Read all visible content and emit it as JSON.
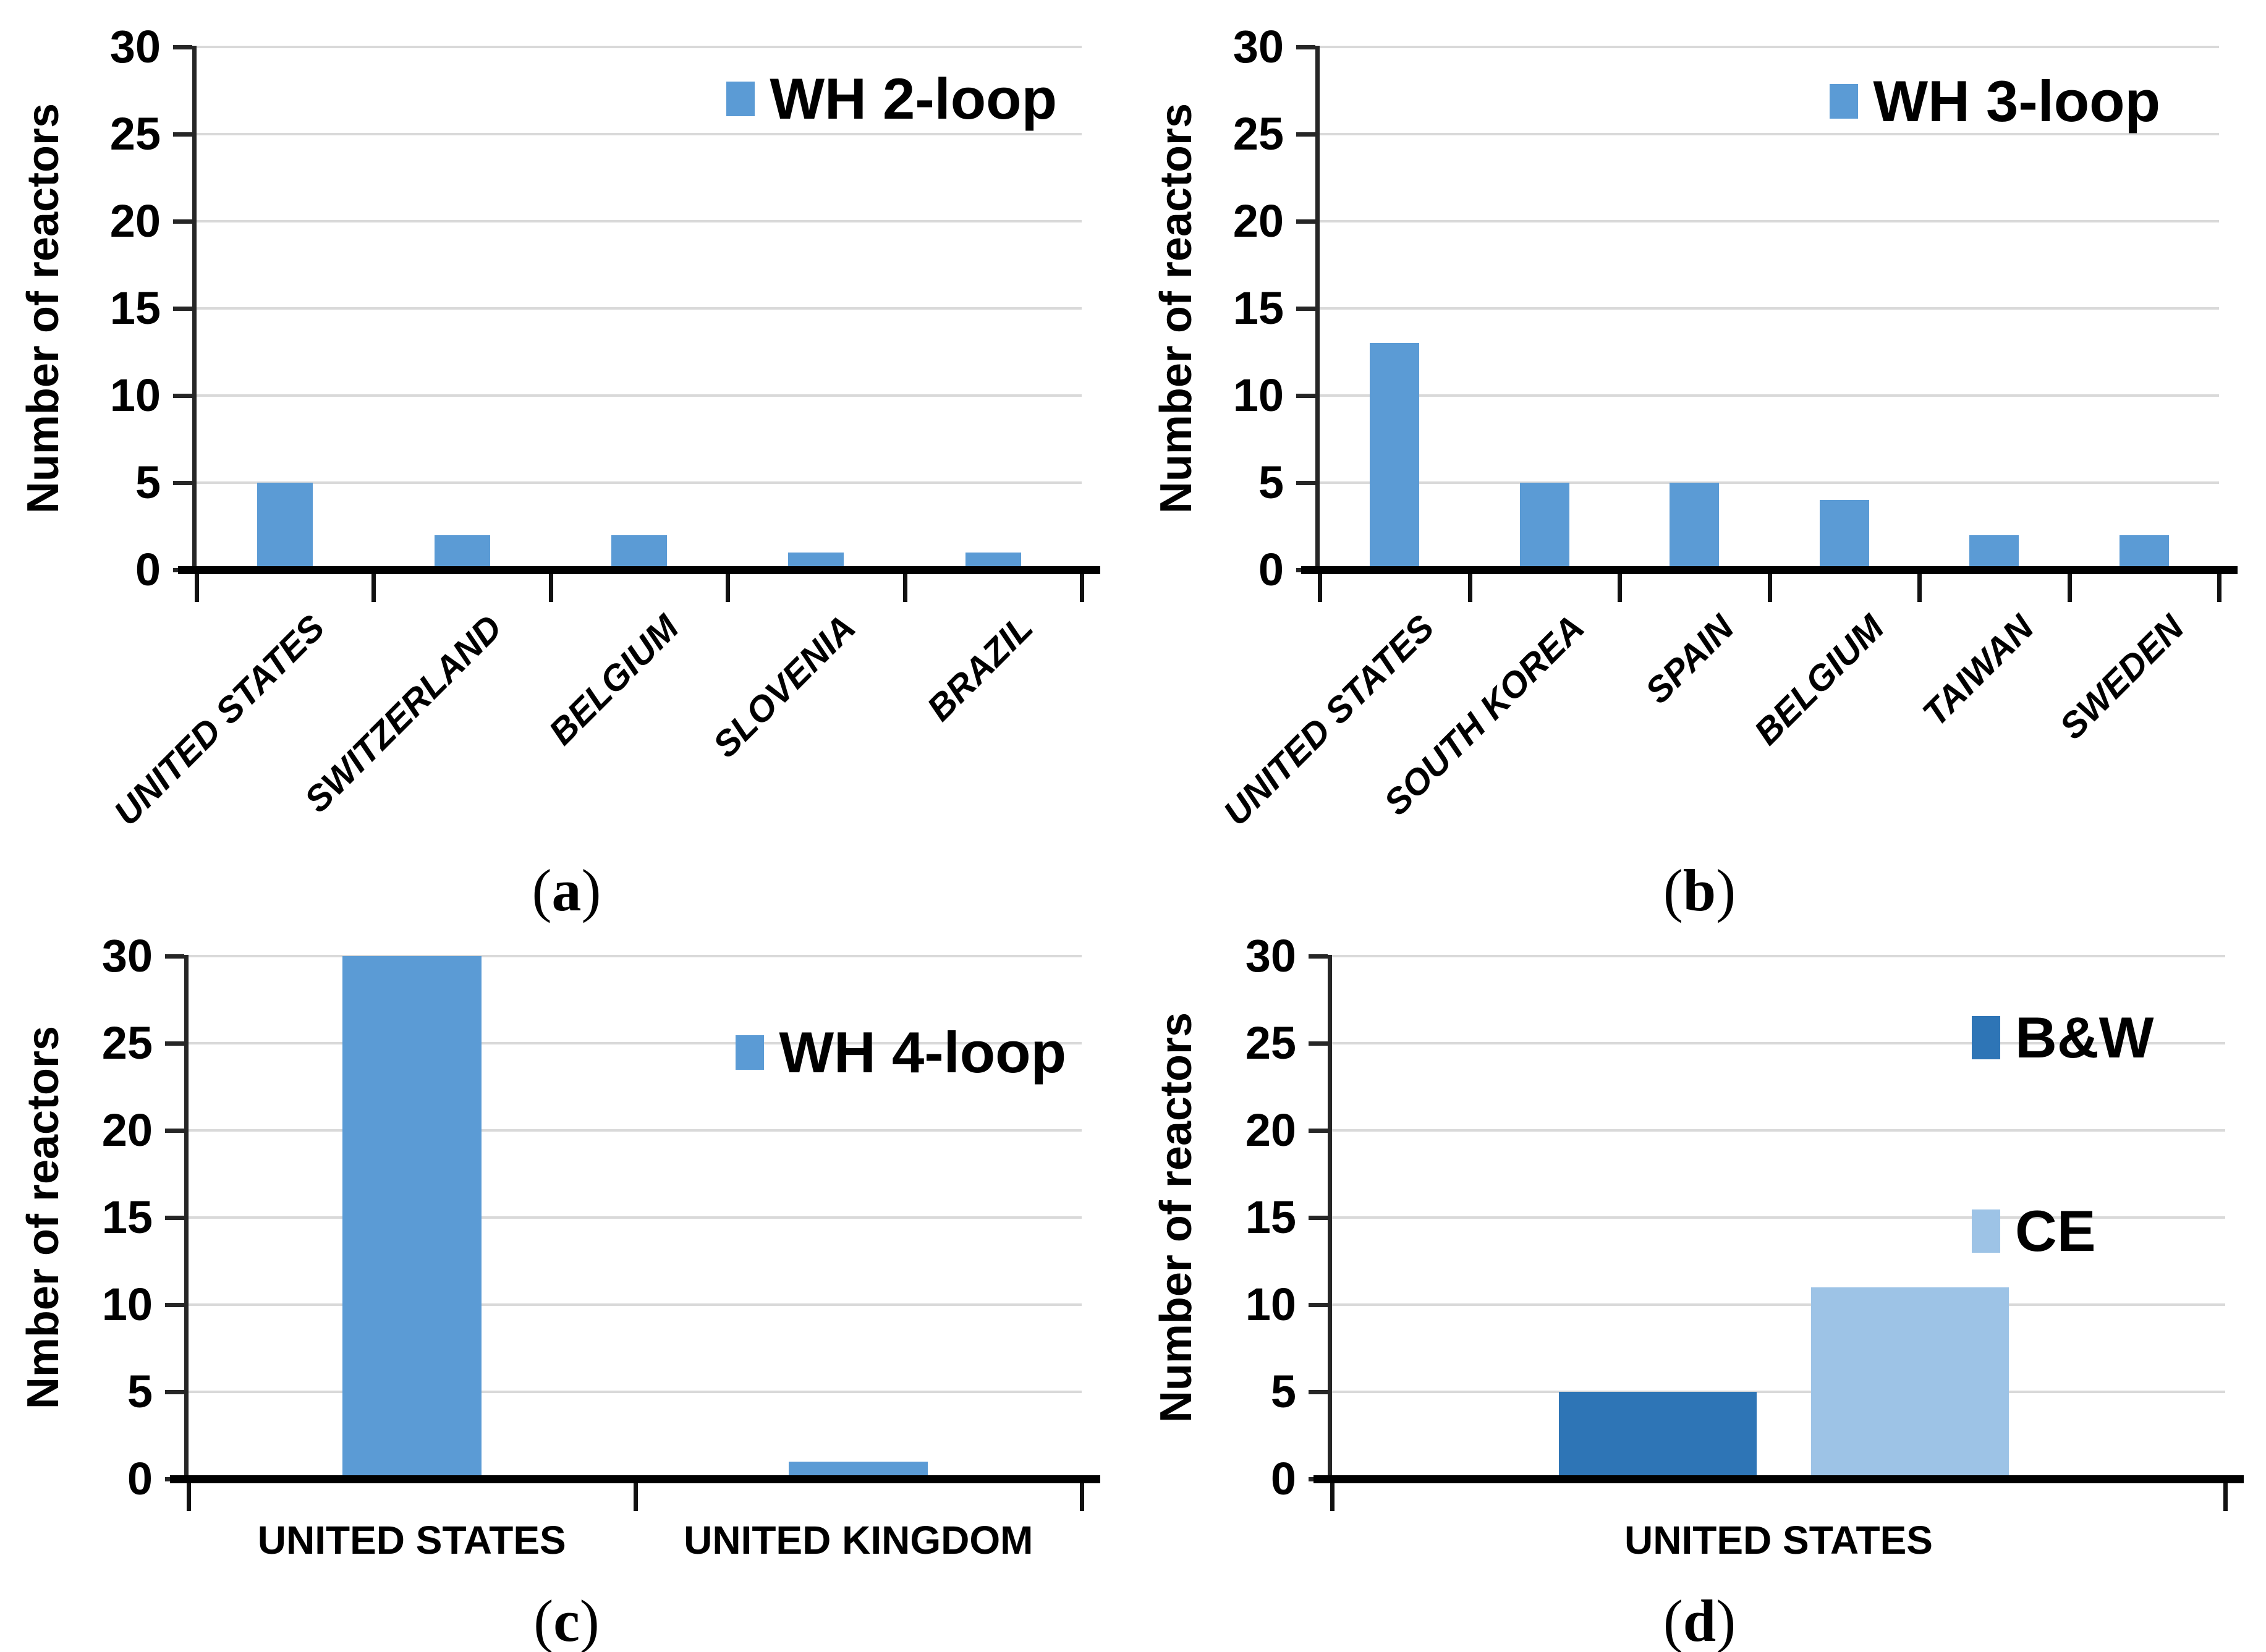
{
  "figure": {
    "background": "#ffffff",
    "description_visible_text_only": true
  },
  "colors": {
    "wh_bar_blue": "#5b9bd5",
    "bw_dark_blue": "#2e75b6",
    "ce_light_blue": "#9dc3e6",
    "gridline": "#d9d9d9",
    "axis": "#000000",
    "text": "#000000"
  },
  "chart_data": [
    {
      "panel": "a",
      "type": "bar",
      "ylabel": "Number of reactors",
      "ylim": [
        0,
        30
      ],
      "yticks": [
        0,
        5,
        10,
        15,
        20,
        25,
        30
      ],
      "grid": true,
      "legend_position": "top-right-inside",
      "categories": [
        "UNITED STATES",
        "SWITZERLAND",
        "BELGIUM",
        "SLOVENIA",
        "BRAZIL"
      ],
      "series": [
        {
          "name": "WH 2-loop",
          "color": "#5b9bd5",
          "values": [
            5,
            2,
            2,
            1,
            1
          ]
        }
      ],
      "caption": {
        "open": "(",
        "letter": "a",
        "close": ")"
      }
    },
    {
      "panel": "b",
      "type": "bar",
      "ylabel": "Number of reactors",
      "ylim": [
        0,
        30
      ],
      "yticks": [
        0,
        5,
        10,
        15,
        20,
        25,
        30
      ],
      "grid": true,
      "legend_position": "top-right-inside",
      "categories": [
        "UNITED STATES",
        "SOUTH KOREA",
        "SPAIN",
        "BELGIUM",
        "TAIWAN",
        "SWEDEN"
      ],
      "series": [
        {
          "name": "WH 3-loop",
          "color": "#5b9bd5",
          "values": [
            13,
            5,
            5,
            4,
            2,
            2
          ]
        }
      ],
      "caption": {
        "open": "(",
        "letter": "b",
        "close": ")"
      }
    },
    {
      "panel": "c",
      "type": "bar",
      "ylabel": "Nmber of reactors",
      "ylim": [
        0,
        30
      ],
      "yticks": [
        0,
        5,
        10,
        15,
        20,
        25,
        30
      ],
      "grid": true,
      "legend_position": "top-right-inside",
      "categories": [
        "UNITED STATES",
        "UNITED KINGDOM"
      ],
      "series": [
        {
          "name": "WH 4-loop",
          "color": "#5b9bd5",
          "values": [
            30,
            1
          ]
        }
      ],
      "caption": {
        "open": "(",
        "letter": "c",
        "close": ")"
      }
    },
    {
      "panel": "d",
      "type": "bar",
      "ylabel": "Number of reactors",
      "ylim": [
        0,
        30
      ],
      "yticks": [
        0,
        5,
        10,
        15,
        20,
        25,
        30
      ],
      "grid": true,
      "legend_position": "right-stacked-inside",
      "categories": [
        "UNITED STATES"
      ],
      "series": [
        {
          "name": "B&W",
          "color": "#2e75b6",
          "values": [
            5
          ]
        },
        {
          "name": "CE",
          "color": "#9dc3e6",
          "values": [
            11
          ]
        }
      ],
      "caption": {
        "open": "(",
        "letter": "d",
        "close": ")"
      }
    }
  ]
}
